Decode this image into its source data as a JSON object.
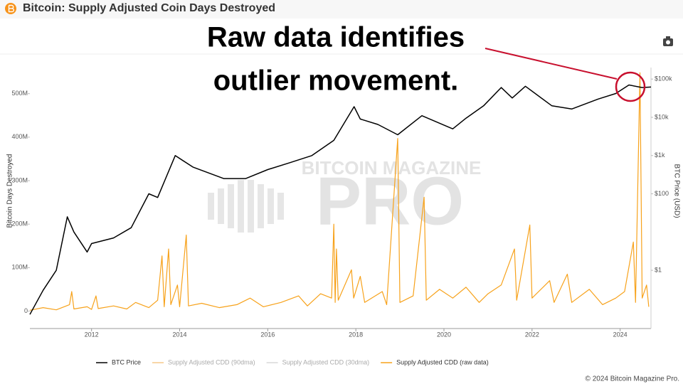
{
  "header": {
    "title": "Bitcoin: Supply Adjusted Coin Days Destroyed"
  },
  "chart_data": {
    "type": "line",
    "annotation": [
      "Raw data identifies",
      "outlier movement."
    ],
    "watermark": [
      "BITCOIN MAGAZINE",
      "PRO"
    ],
    "ylabel": "Bitcoin Days Destroyed",
    "y2label": "BTC Price (USD)",
    "xlim": [
      2010.6,
      2024.7
    ],
    "xticks": [
      2012,
      2014,
      2016,
      2018,
      2020,
      2022,
      2024
    ],
    "ylim": [
      -40000000,
      560000000
    ],
    "yticks": [
      0,
      {
        "value": 100000000,
        "label": "100M"
      },
      {
        "value": 200000000,
        "label": "200M"
      },
      {
        "value": 300000000,
        "label": "300M"
      },
      {
        "value": 400000000,
        "label": "400M"
      },
      {
        "value": 500000000,
        "label": "500M"
      }
    ],
    "y2lim": [
      0.03,
      200000
    ],
    "y2scale": "log",
    "y2ticks": [
      {
        "value": 1,
        "label": "$1"
      },
      {
        "value": 100,
        "label": "$100"
      },
      {
        "value": 1000,
        "label": "$1k"
      },
      {
        "value": 10000,
        "label": "$10k"
      },
      {
        "value": 100000,
        "label": "$100k"
      }
    ],
    "series": [
      {
        "name": "BTC Price",
        "color": "#000000",
        "axis": "y2",
        "x": [
          2010.6,
          2010.9,
          2011.2,
          2011.45,
          2011.6,
          2011.9,
          2012.0,
          2012.5,
          2012.9,
          2013.3,
          2013.5,
          2013.9,
          2014.3,
          2015.0,
          2015.5,
          2016.0,
          2016.5,
          2017.0,
          2017.5,
          2017.96,
          2018.1,
          2018.5,
          2018.95,
          2019.5,
          2020.2,
          2020.5,
          2020.9,
          2021.3,
          2021.55,
          2021.85,
          2022.45,
          2022.9,
          2023.5,
          2023.9,
          2024.2,
          2024.5,
          2024.7
        ],
        "values": [
          0.07,
          0.3,
          1,
          25,
          10,
          3,
          5,
          7,
          13,
          100,
          80,
          1000,
          500,
          250,
          250,
          430,
          650,
          1000,
          2500,
          19000,
          9000,
          6500,
          3500,
          11000,
          5000,
          9500,
          20000,
          60000,
          32000,
          65000,
          20000,
          16500,
          30000,
          42000,
          70000,
          60000,
          62000
        ]
      },
      {
        "name": "Supply Adjusted CDD (90dma)",
        "color": "#f5c98a",
        "hidden": true
      },
      {
        "name": "Supply Adjusted CDD (30dma)",
        "color": "#d9d9d9",
        "hidden": true
      },
      {
        "name": "Supply Adjusted CDD (raw data)",
        "color": "#f7a21b",
        "x": [
          2010.6,
          2010.9,
          2011.2,
          2011.5,
          2011.55,
          2011.6,
          2011.9,
          2012.0,
          2012.1,
          2012.15,
          2012.5,
          2012.8,
          2013.0,
          2013.3,
          2013.5,
          2013.6,
          2013.65,
          2013.75,
          2013.8,
          2013.95,
          2014.0,
          2014.15,
          2014.2,
          2014.5,
          2014.9,
          2015.3,
          2015.6,
          2015.9,
          2016.3,
          2016.7,
          2016.9,
          2017.2,
          2017.45,
          2017.5,
          2017.53,
          2017.56,
          2017.6,
          2017.9,
          2017.95,
          2018.1,
          2018.2,
          2018.6,
          2018.7,
          2018.95,
          2019.0,
          2019.3,
          2019.55,
          2019.6,
          2019.9,
          2020.2,
          2020.5,
          2020.8,
          2021.0,
          2021.3,
          2021.6,
          2021.65,
          2021.95,
          2022.0,
          2022.4,
          2022.5,
          2022.8,
          2022.9,
          2023.3,
          2023.6,
          2023.9,
          2024.1,
          2024.3,
          2024.35,
          2024.45,
          2024.5,
          2024.6,
          2024.65
        ],
        "values": [
          2000000,
          8000000,
          3000000,
          15000000,
          45000000,
          5000000,
          10000000,
          4000000,
          35000000,
          6000000,
          12000000,
          5000000,
          20000000,
          8000000,
          25000000,
          127000000,
          10000000,
          143000000,
          15000000,
          60000000,
          10000000,
          175000000,
          12000000,
          18000000,
          8000000,
          15000000,
          30000000,
          10000000,
          20000000,
          35000000,
          12000000,
          40000000,
          30000000,
          200000000,
          20000000,
          143000000,
          25000000,
          95000000,
          30000000,
          80000000,
          20000000,
          45000000,
          15000000,
          397000000,
          20000000,
          35000000,
          262000000,
          25000000,
          50000000,
          30000000,
          55000000,
          20000000,
          40000000,
          60000000,
          143000000,
          25000000,
          198000000,
          30000000,
          70000000,
          20000000,
          85000000,
          20000000,
          50000000,
          15000000,
          30000000,
          45000000,
          159000000,
          20000000,
          548000000,
          30000000,
          60000000,
          10000000
        ]
      }
    ]
  },
  "footer": {
    "copyright": "© 2024 Bitcoin Magazine Pro."
  }
}
